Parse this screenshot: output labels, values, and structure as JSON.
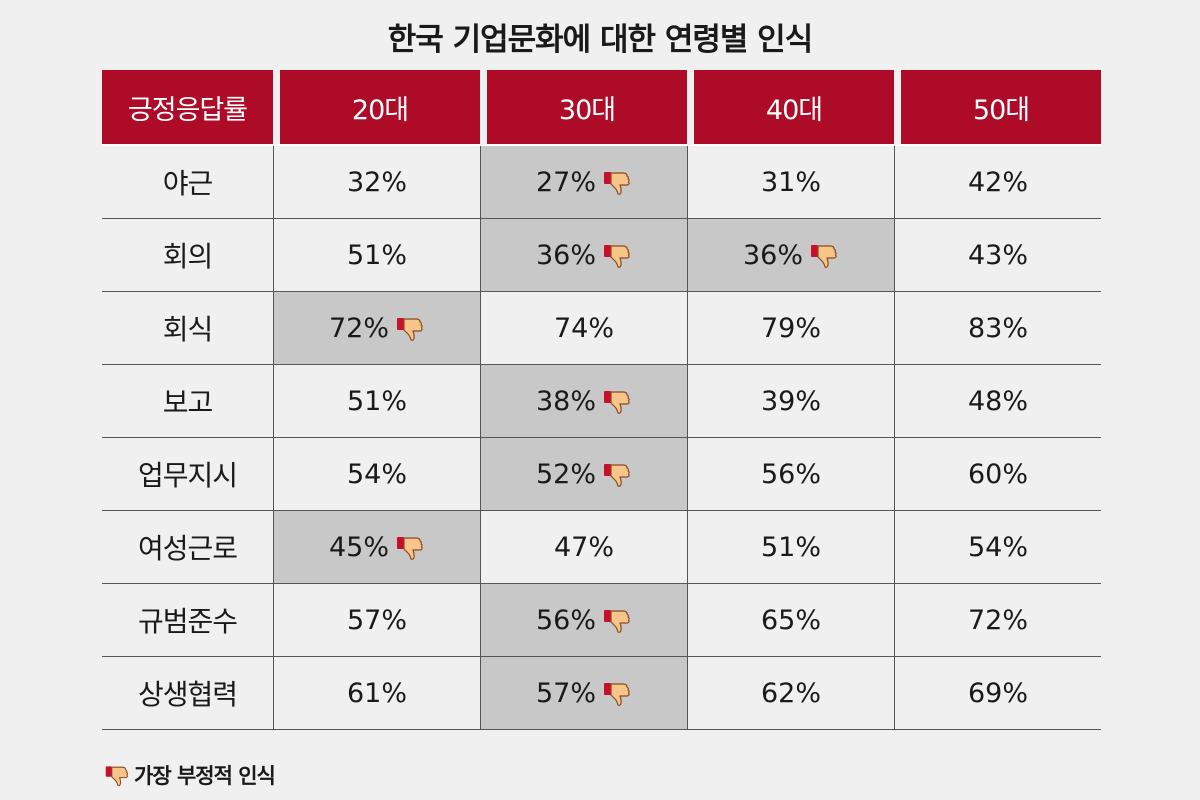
{
  "chart_data": {
    "type": "table",
    "title": "한국 기업문화에 대한 연령별 인식",
    "header": [
      "긍정응답률",
      "20대",
      "30대",
      "40대",
      "50대"
    ],
    "rows": [
      {
        "label": "야근",
        "values": [
          "32%",
          "27%",
          "31%",
          "42%"
        ],
        "negative": [
          false,
          true,
          false,
          false
        ]
      },
      {
        "label": "회의",
        "values": [
          "51%",
          "36%",
          "36%",
          "43%"
        ],
        "negative": [
          false,
          true,
          true,
          false
        ]
      },
      {
        "label": "회식",
        "values": [
          "72%",
          "74%",
          "79%",
          "83%"
        ],
        "negative": [
          true,
          false,
          false,
          false
        ]
      },
      {
        "label": "보고",
        "values": [
          "51%",
          "38%",
          "39%",
          "48%"
        ],
        "negative": [
          false,
          true,
          false,
          false
        ]
      },
      {
        "label": "업무지시",
        "values": [
          "54%",
          "52%",
          "56%",
          "60%"
        ],
        "negative": [
          false,
          true,
          false,
          false
        ]
      },
      {
        "label": "여성근로",
        "values": [
          "45%",
          "47%",
          "51%",
          "54%"
        ],
        "negative": [
          true,
          false,
          false,
          false
        ]
      },
      {
        "label": "규범준수",
        "values": [
          "57%",
          "56%",
          "65%",
          "72%"
        ],
        "negative": [
          false,
          true,
          false,
          false
        ]
      },
      {
        "label": "상생협력",
        "values": [
          "61%",
          "57%",
          "62%",
          "69%"
        ],
        "negative": [
          false,
          true,
          false,
          false
        ]
      }
    ],
    "legend": "가장 부정적 인식",
    "icon": "thumbs-down-icon",
    "colors": {
      "header_bg": "#ad0b27",
      "highlight_bg": "#c8c8c8",
      "background": "#f0f0f0"
    }
  }
}
